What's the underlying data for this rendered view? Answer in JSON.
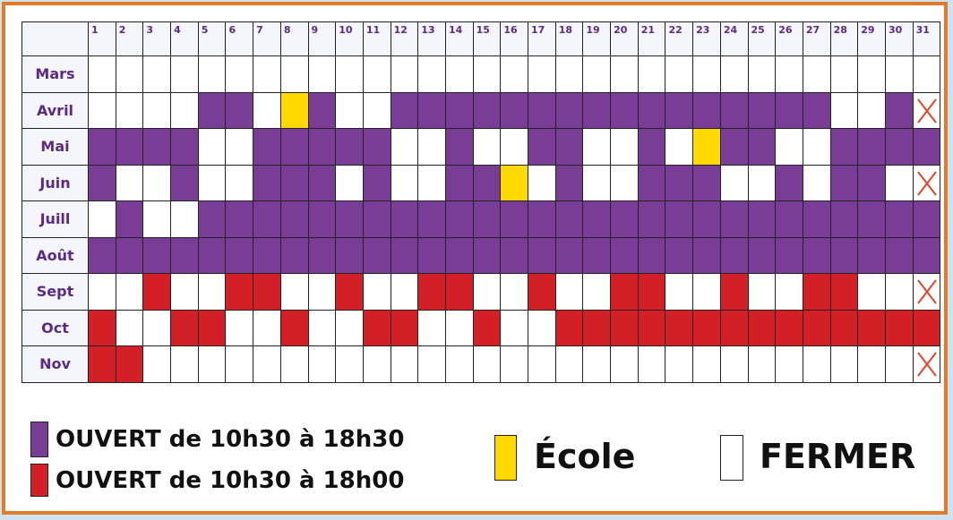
{
  "colors": {
    "purple": "#7a3d96",
    "red": "#d31f26",
    "yellow": "#ffd900",
    "white": "#ffffff",
    "border": "#e07b2c"
  },
  "days": [
    "1",
    "2",
    "3",
    "4",
    "5",
    "6",
    "7",
    "8",
    "9",
    "10",
    "11",
    "12",
    "13",
    "14",
    "15",
    "16",
    "17",
    "18",
    "19",
    "20",
    "21",
    "22",
    "23",
    "24",
    "25",
    "26",
    "27",
    "28",
    "29",
    "30",
    "31"
  ],
  "months": [
    {
      "name": "Mars",
      "cells": "WWWWWWWWWWWWWWWWWWWWWWWWWWWWWWW"
    },
    {
      "name": "Avril",
      "cells": "WWWWPPWYPWWPPPPPPPPPPPPPPPPWWPX"
    },
    {
      "name": "Mai",
      "cells": "PPPPWWPPPPPWWPWWPPWWPWYPPWWPPPP"
    },
    {
      "name": "Juin",
      "cells": "PWWPWWPPPWPWWPPYWPWWPPPWWPWPPWX"
    },
    {
      "name": "Juill",
      "cells": "WPWWPPPPPPPPPPPPPPPPPPPPPPPPPPP"
    },
    {
      "name": "Août",
      "cells": "PPPPPPPPPPPPPPPPPPPPPPPPPPPPPPP"
    },
    {
      "name": "Sept",
      "cells": "WWRWWRRWWRWWRRWWRWWRRWWRWWRRWWX"
    },
    {
      "name": "Oct",
      "cells": "RWWRRWWRWWRRWWRWWRRRRRRRRRRRRRR"
    },
    {
      "name": "Nov",
      "cells": "RRWWWWWWWWWWWWWWWWWWWWWWWWWWWWX"
    }
  ],
  "legend": {
    "purple_label": "OUVERT de 10h30 à 18h30",
    "red_label": "OUVERT de 10h30 à 18h00",
    "yellow_label": "École",
    "white_label": "FERMER"
  }
}
